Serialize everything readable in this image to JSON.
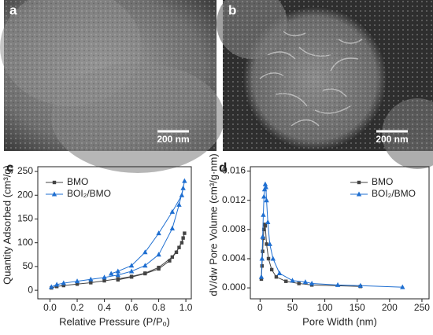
{
  "images": [
    {
      "label": "a",
      "scale": "200 nm"
    },
    {
      "label": "b",
      "scale": "200 nm"
    }
  ],
  "chart_data": [
    {
      "type": "line",
      "panel": "c",
      "x_label": "Relative Pressure (P/Pₒ)",
      "y_label": "Quantity Adsorbed (cm³/g)",
      "xlim": [
        -0.09,
        1.04
      ],
      "ylim": [
        -18,
        260
      ],
      "xticks": [
        {
          "value": 0,
          "label": "0.0"
        },
        {
          "value": 0.2,
          "label": "0.2"
        },
        {
          "value": 0.4,
          "label": "0.4"
        },
        {
          "value": 0.6,
          "label": "0.6"
        },
        {
          "value": 0.8,
          "label": "0.8"
        },
        {
          "value": 1,
          "label": "1.0"
        }
      ],
      "yticks": [
        0,
        50,
        100,
        150,
        200,
        250
      ],
      "legend": "top-left",
      "series": [
        {
          "name": "BMO",
          "color": "#444444",
          "marker": "square",
          "x": [
            0.01,
            0.05,
            0.1,
            0.2,
            0.3,
            0.4,
            0.5,
            0.6,
            0.7,
            0.8,
            0.9,
            0.95,
            0.98,
            0.99,
            0.97,
            0.93,
            0.88,
            0.8,
            0.7,
            0.6,
            0.5
          ],
          "values": [
            5,
            8,
            10,
            13,
            16,
            20,
            24,
            29,
            36,
            48,
            70,
            90,
            110,
            120,
            100,
            80,
            62,
            45,
            35,
            28,
            22
          ]
        },
        {
          "name": "BOI₂/BMO",
          "color": "#1f6fd1",
          "marker": "triangle",
          "x": [
            0.01,
            0.05,
            0.1,
            0.2,
            0.3,
            0.4,
            0.5,
            0.6,
            0.7,
            0.8,
            0.9,
            0.95,
            0.98,
            0.99,
            0.97,
            0.9,
            0.8,
            0.7,
            0.6,
            0.5,
            0.45
          ],
          "values": [
            7,
            12,
            15,
            19,
            23,
            27,
            32,
            40,
            52,
            75,
            130,
            180,
            215,
            230,
            200,
            165,
            120,
            80,
            52,
            40,
            35
          ]
        }
      ]
    },
    {
      "type": "line",
      "panel": "d",
      "x_label": "Pore Width (nm)",
      "y_label": "dV/dw Pore Volume (cm³/g·nm)",
      "xlim": [
        -15,
        261
      ],
      "ylim": [
        -0.0015,
        0.0166
      ],
      "xticks": [
        0,
        50,
        100,
        150,
        200,
        250
      ],
      "yticks": [
        {
          "value": 0,
          "label": "0.000"
        },
        {
          "value": 0.004,
          "label": "0.004"
        },
        {
          "value": 0.008,
          "label": "0.008"
        },
        {
          "value": 0.012,
          "label": "0.012"
        },
        {
          "value": 0.016,
          "label": "0.016"
        }
      ],
      "legend": "top-right",
      "series": [
        {
          "name": "BMO",
          "color": "#444444",
          "marker": "square",
          "x": [
            2,
            3,
            4,
            5,
            6,
            7,
            8,
            10,
            13,
            18,
            25,
            40,
            60,
            80,
            155
          ],
          "values": [
            0.0012,
            0.003,
            0.005,
            0.0068,
            0.008,
            0.0087,
            0.0085,
            0.006,
            0.004,
            0.0025,
            0.0015,
            0.0009,
            0.0006,
            0.0004,
            0.0002
          ]
        },
        {
          "name": "BOI₂/BMO",
          "color": "#1f6fd1",
          "marker": "triangle",
          "x": [
            2,
            3,
            4,
            5,
            6,
            7,
            8,
            9,
            10,
            12,
            15,
            20,
            30,
            50,
            70,
            80,
            120,
            155,
            220
          ],
          "values": [
            0.0015,
            0.004,
            0.007,
            0.01,
            0.0125,
            0.0135,
            0.0142,
            0.0138,
            0.012,
            0.009,
            0.006,
            0.004,
            0.002,
            0.001,
            0.0008,
            0.0006,
            0.0004,
            0.0003,
            0.0001
          ]
        }
      ]
    }
  ]
}
